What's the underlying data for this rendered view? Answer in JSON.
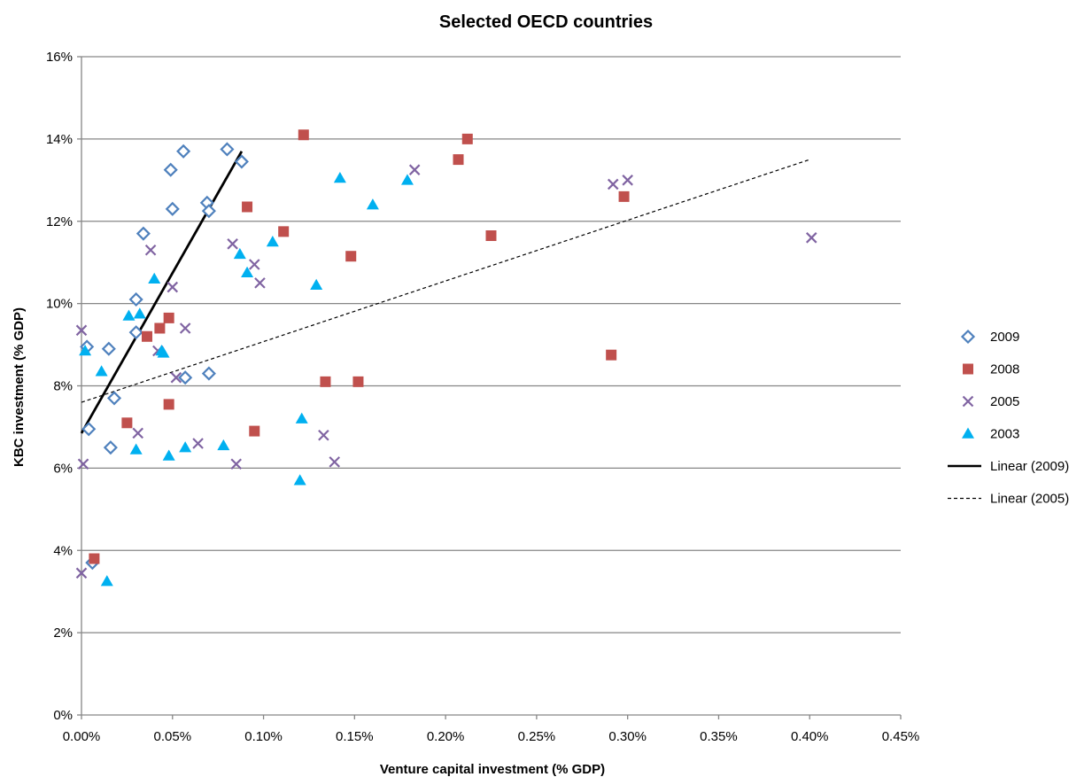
{
  "chart_data": {
    "type": "scatter",
    "title": "Selected OECD countries",
    "xlabel": "Venture capital investment (% GDP)",
    "ylabel": "KBC investment  (% GDP)",
    "xlim": [
      0,
      0.45
    ],
    "ylim": [
      0,
      16
    ],
    "x_ticks": [
      "0.00%",
      "0.05%",
      "0.10%",
      "0.15%",
      "0.20%",
      "0.25%",
      "0.30%",
      "0.35%",
      "0.40%",
      "0.45%"
    ],
    "y_ticks": [
      "0%",
      "2%",
      "4%",
      "6%",
      "8%",
      "10%",
      "12%",
      "14%",
      "16%"
    ],
    "grid": "horizontal",
    "legend_position": "right",
    "series": [
      {
        "name": "2009",
        "marker": "diamond-open",
        "color": "#4f81bd",
        "points": [
          [
            0.003,
            8.95
          ],
          [
            0.015,
            8.9
          ],
          [
            0.018,
            7.7
          ],
          [
            0.004,
            6.95
          ],
          [
            0.016,
            6.5
          ],
          [
            0.006,
            3.7
          ],
          [
            0.034,
            11.7
          ],
          [
            0.03,
            10.1
          ],
          [
            0.03,
            9.3
          ],
          [
            0.049,
            13.25
          ],
          [
            0.056,
            13.7
          ],
          [
            0.05,
            12.3
          ],
          [
            0.069,
            12.45
          ],
          [
            0.07,
            12.25
          ],
          [
            0.08,
            13.75
          ],
          [
            0.088,
            13.45
          ],
          [
            0.057,
            8.2
          ],
          [
            0.07,
            8.3
          ]
        ]
      },
      {
        "name": "2008",
        "marker": "square",
        "color": "#c0504d",
        "points": [
          [
            0.007,
            3.8
          ],
          [
            0.025,
            7.1
          ],
          [
            0.036,
            9.2
          ],
          [
            0.043,
            9.4
          ],
          [
            0.048,
            9.65
          ],
          [
            0.048,
            7.55
          ],
          [
            0.091,
            12.35
          ],
          [
            0.095,
            6.9
          ],
          [
            0.111,
            11.75
          ],
          [
            0.122,
            14.1
          ],
          [
            0.134,
            8.1
          ],
          [
            0.148,
            11.15
          ],
          [
            0.152,
            8.1
          ],
          [
            0.207,
            13.5
          ],
          [
            0.212,
            14.0
          ],
          [
            0.225,
            11.65
          ],
          [
            0.291,
            8.75
          ],
          [
            0.298,
            12.6
          ]
        ]
      },
      {
        "name": "2005",
        "marker": "x",
        "color": "#8064a2",
        "points": [
          [
            0.0,
            9.35
          ],
          [
            0.001,
            6.1
          ],
          [
            0.0,
            3.45
          ],
          [
            0.031,
            6.85
          ],
          [
            0.038,
            11.3
          ],
          [
            0.042,
            8.85
          ],
          [
            0.05,
            10.4
          ],
          [
            0.052,
            8.2
          ],
          [
            0.057,
            9.4
          ],
          [
            0.064,
            6.6
          ],
          [
            0.083,
            11.45
          ],
          [
            0.085,
            6.1
          ],
          [
            0.095,
            10.95
          ],
          [
            0.098,
            10.5
          ],
          [
            0.133,
            6.8
          ],
          [
            0.139,
            6.15
          ],
          [
            0.183,
            13.25
          ],
          [
            0.292,
            12.9
          ],
          [
            0.3,
            13.0
          ],
          [
            0.401,
            11.6
          ]
        ]
      },
      {
        "name": "2003",
        "marker": "triangle",
        "color": "#00b0f0",
        "points": [
          [
            0.002,
            8.85
          ],
          [
            0.011,
            8.35
          ],
          [
            0.014,
            3.25
          ],
          [
            0.026,
            9.7
          ],
          [
            0.03,
            6.45
          ],
          [
            0.032,
            9.75
          ],
          [
            0.04,
            10.6
          ],
          [
            0.044,
            8.85
          ],
          [
            0.045,
            8.8
          ],
          [
            0.048,
            6.3
          ],
          [
            0.057,
            6.5
          ],
          [
            0.078,
            6.55
          ],
          [
            0.087,
            11.2
          ],
          [
            0.091,
            10.75
          ],
          [
            0.105,
            11.5
          ],
          [
            0.121,
            7.2
          ],
          [
            0.12,
            5.7
          ],
          [
            0.129,
            10.45
          ],
          [
            0.142,
            13.05
          ],
          [
            0.16,
            12.4
          ],
          [
            0.179,
            13.0
          ]
        ]
      }
    ],
    "trendlines": [
      {
        "name": "Linear (2009)",
        "style": "solid",
        "color": "#000000",
        "from": [
          0.0,
          6.85
        ],
        "to": [
          0.088,
          13.7
        ]
      },
      {
        "name": "Linear (2005)",
        "style": "dashed",
        "color": "#000000",
        "from": [
          0.0,
          7.6
        ],
        "to": [
          0.4,
          13.5
        ]
      }
    ]
  }
}
